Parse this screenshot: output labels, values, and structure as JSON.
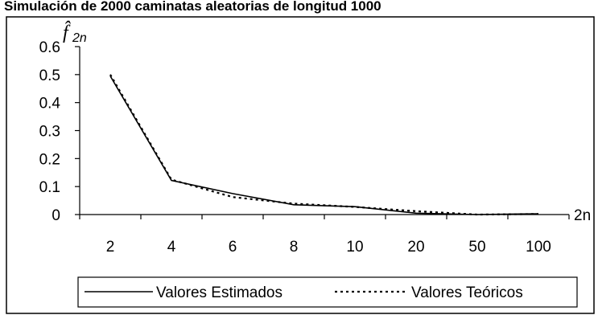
{
  "chart_data": {
    "type": "line",
    "title": "Simulación de 2000 caminatas aleatorias de longitud 1000",
    "ylabel": "f̂",
    "ylabel_sub": "2n",
    "xlabel": "2n",
    "categories": [
      "2",
      "4",
      "6",
      "8",
      "10",
      "20",
      "50",
      "100"
    ],
    "ylim": [
      0,
      0.6
    ],
    "yticks": [
      "0",
      "0.1",
      "0.2",
      "0.3",
      "0.4",
      "0.5",
      "0.6"
    ],
    "series": [
      {
        "name": "Valores Estimados",
        "style": "solid",
        "color": "#000000",
        "values": [
          0.495,
          0.122,
          0.075,
          0.035,
          0.028,
          0.005,
          0.0,
          0.003
        ]
      },
      {
        "name": "Valores Teóricos",
        "style": "dotted",
        "color": "#000000",
        "values": [
          0.5,
          0.125,
          0.0625,
          0.039,
          0.0273,
          0.012,
          0.0,
          0.002
        ]
      }
    ],
    "grid": false,
    "legend": "bottom"
  }
}
